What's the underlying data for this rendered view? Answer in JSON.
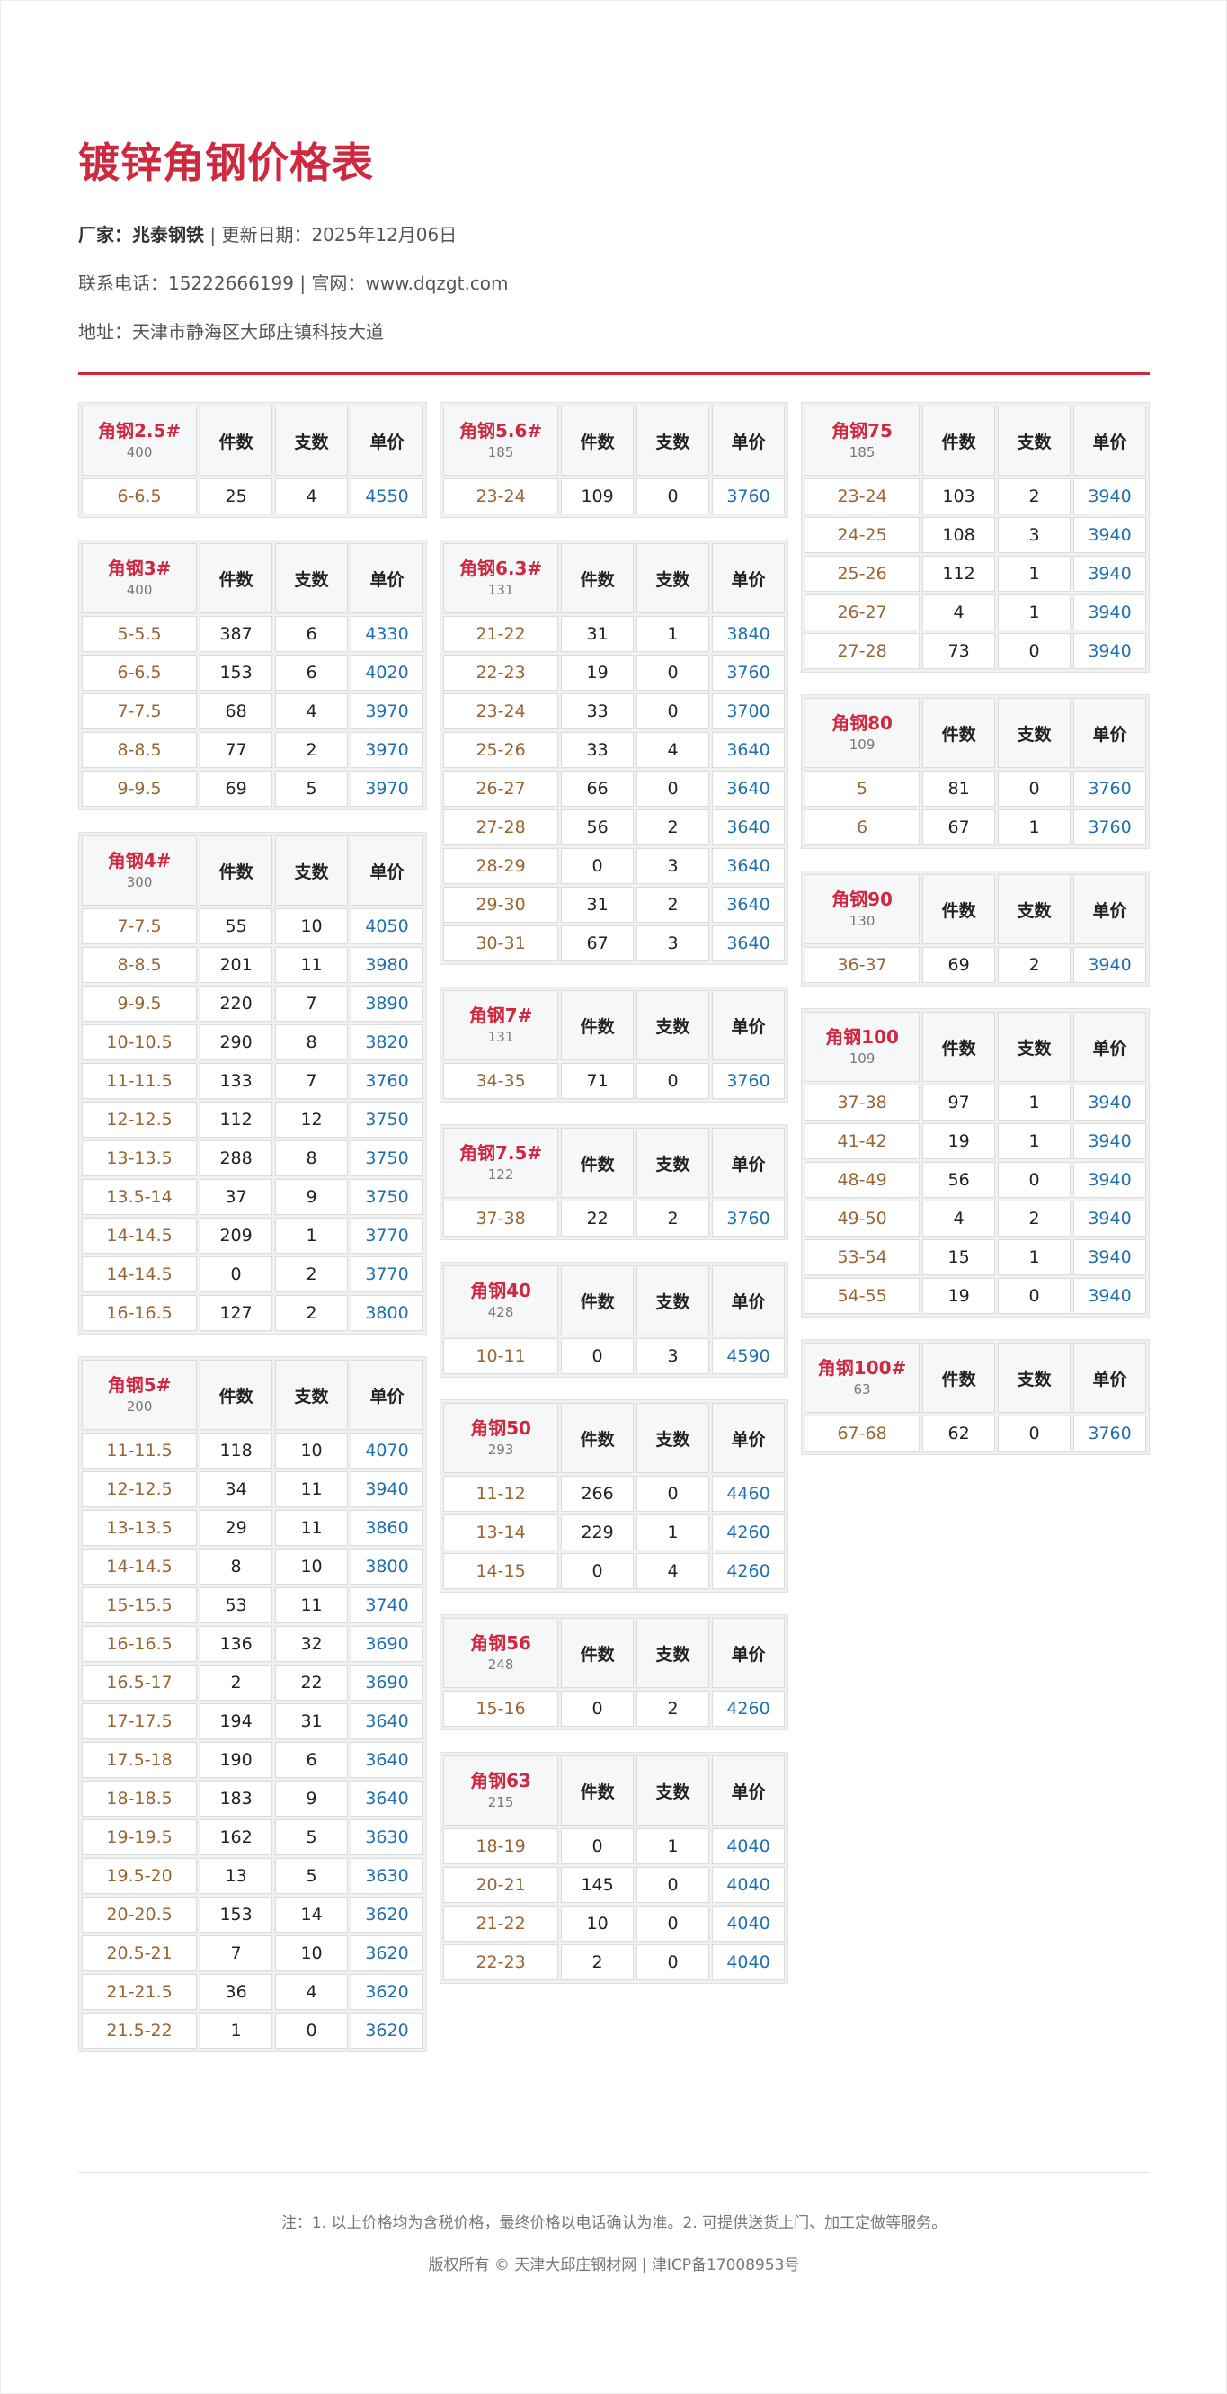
{
  "title": "镀锌角钢价格表",
  "meta": {
    "factory_label": "厂家：",
    "factory": "兆泰钢铁",
    "sep": " | ",
    "update_label": "更新日期：",
    "update": "2025年12月06日",
    "phone_label": "联系电话：",
    "phone": "15222666199",
    "site_label": "官网：",
    "site": "www.dqzgt.com",
    "address_label": "地址：",
    "address": "天津市静海区大邱庄镇科技大道"
  },
  "headers": {
    "pieces": "件数",
    "bundles": "支数",
    "price": "单价"
  },
  "columns": [
    [
      {
        "name": "角钢2.5#",
        "sub": "400",
        "rows": [
          [
            "6-6.5",
            "25",
            "4",
            "4550"
          ]
        ]
      },
      {
        "name": "角钢3#",
        "sub": "400",
        "rows": [
          [
            "5-5.5",
            "387",
            "6",
            "4330"
          ],
          [
            "6-6.5",
            "153",
            "6",
            "4020"
          ],
          [
            "7-7.5",
            "68",
            "4",
            "3970"
          ],
          [
            "8-8.5",
            "77",
            "2",
            "3970"
          ],
          [
            "9-9.5",
            "69",
            "5",
            "3970"
          ]
        ]
      },
      {
        "name": "角钢4#",
        "sub": "300",
        "rows": [
          [
            "7-7.5",
            "55",
            "10",
            "4050"
          ],
          [
            "8-8.5",
            "201",
            "11",
            "3980"
          ],
          [
            "9-9.5",
            "220",
            "7",
            "3890"
          ],
          [
            "10-10.5",
            "290",
            "8",
            "3820"
          ],
          [
            "11-11.5",
            "133",
            "7",
            "3760"
          ],
          [
            "12-12.5",
            "112",
            "12",
            "3750"
          ],
          [
            "13-13.5",
            "288",
            "8",
            "3750"
          ],
          [
            "13.5-14",
            "37",
            "9",
            "3750"
          ],
          [
            "14-14.5",
            "209",
            "1",
            "3770"
          ],
          [
            "14-14.5",
            "0",
            "2",
            "3770"
          ],
          [
            "16-16.5",
            "127",
            "2",
            "3800"
          ]
        ]
      },
      {
        "name": "角钢5#",
        "sub": "200",
        "rows": [
          [
            "11-11.5",
            "118",
            "10",
            "4070"
          ],
          [
            "12-12.5",
            "34",
            "11",
            "3940"
          ],
          [
            "13-13.5",
            "29",
            "11",
            "3860"
          ],
          [
            "14-14.5",
            "8",
            "10",
            "3800"
          ],
          [
            "15-15.5",
            "53",
            "11",
            "3740"
          ],
          [
            "16-16.5",
            "136",
            "32",
            "3690"
          ],
          [
            "16.5-17",
            "2",
            "22",
            "3690"
          ],
          [
            "17-17.5",
            "194",
            "31",
            "3640"
          ],
          [
            "17.5-18",
            "190",
            "6",
            "3640"
          ],
          [
            "18-18.5",
            "183",
            "9",
            "3640"
          ],
          [
            "19-19.5",
            "162",
            "5",
            "3630"
          ],
          [
            "19.5-20",
            "13",
            "5",
            "3630"
          ],
          [
            "20-20.5",
            "153",
            "14",
            "3620"
          ],
          [
            "20.5-21",
            "7",
            "10",
            "3620"
          ],
          [
            "21-21.5",
            "36",
            "4",
            "3620"
          ],
          [
            "21.5-22",
            "1",
            "0",
            "3620"
          ]
        ]
      }
    ],
    [
      {
        "name": "角钢5.6#",
        "sub": "185",
        "rows": [
          [
            "23-24",
            "109",
            "0",
            "3760"
          ]
        ]
      },
      {
        "name": "角钢6.3#",
        "sub": "131",
        "rows": [
          [
            "21-22",
            "31",
            "1",
            "3840"
          ],
          [
            "22-23",
            "19",
            "0",
            "3760"
          ],
          [
            "23-24",
            "33",
            "0",
            "3700"
          ],
          [
            "25-26",
            "33",
            "4",
            "3640"
          ],
          [
            "26-27",
            "66",
            "0",
            "3640"
          ],
          [
            "27-28",
            "56",
            "2",
            "3640"
          ],
          [
            "28-29",
            "0",
            "3",
            "3640"
          ],
          [
            "29-30",
            "31",
            "2",
            "3640"
          ],
          [
            "30-31",
            "67",
            "3",
            "3640"
          ]
        ]
      },
      {
        "name": "角钢7#",
        "sub": "131",
        "rows": [
          [
            "34-35",
            "71",
            "0",
            "3760"
          ]
        ]
      },
      {
        "name": "角钢7.5#",
        "sub": "122",
        "rows": [
          [
            "37-38",
            "22",
            "2",
            "3760"
          ]
        ]
      },
      {
        "name": "角钢40",
        "sub": "428",
        "rows": [
          [
            "10-11",
            "0",
            "3",
            "4590"
          ]
        ]
      },
      {
        "name": "角钢50",
        "sub": "293",
        "rows": [
          [
            "11-12",
            "266",
            "0",
            "4460"
          ],
          [
            "13-14",
            "229",
            "1",
            "4260"
          ],
          [
            "14-15",
            "0",
            "4",
            "4260"
          ]
        ]
      },
      {
        "name": "角钢56",
        "sub": "248",
        "rows": [
          [
            "15-16",
            "0",
            "2",
            "4260"
          ]
        ]
      },
      {
        "name": "角钢63",
        "sub": "215",
        "rows": [
          [
            "18-19",
            "0",
            "1",
            "4040"
          ],
          [
            "20-21",
            "145",
            "0",
            "4040"
          ],
          [
            "21-22",
            "10",
            "0",
            "4040"
          ],
          [
            "22-23",
            "2",
            "0",
            "4040"
          ]
        ]
      }
    ],
    [
      {
        "name": "角钢75",
        "sub": "185",
        "rows": [
          [
            "23-24",
            "103",
            "2",
            "3940"
          ],
          [
            "24-25",
            "108",
            "3",
            "3940"
          ],
          [
            "25-26",
            "112",
            "1",
            "3940"
          ],
          [
            "26-27",
            "4",
            "1",
            "3940"
          ],
          [
            "27-28",
            "73",
            "0",
            "3940"
          ]
        ]
      },
      {
        "name": "角钢80",
        "sub": "109",
        "rows": [
          [
            "5",
            "81",
            "0",
            "3760"
          ],
          [
            "6",
            "67",
            "1",
            "3760"
          ]
        ]
      },
      {
        "name": "角钢90",
        "sub": "130",
        "rows": [
          [
            "36-37",
            "69",
            "2",
            "3940"
          ]
        ]
      },
      {
        "name": "角钢100",
        "sub": "109",
        "rows": [
          [
            "37-38",
            "97",
            "1",
            "3940"
          ],
          [
            "41-42",
            "19",
            "1",
            "3940"
          ],
          [
            "48-49",
            "56",
            "0",
            "3940"
          ],
          [
            "49-50",
            "4",
            "2",
            "3940"
          ],
          [
            "53-54",
            "15",
            "1",
            "3940"
          ],
          [
            "54-55",
            "19",
            "0",
            "3940"
          ]
        ]
      },
      {
        "name": "角钢100#",
        "sub": "63",
        "rows": [
          [
            "67-68",
            "62",
            "0",
            "3760"
          ]
        ]
      }
    ]
  ],
  "footer": {
    "note": "注：1. 以上价格均为含税价格，最终价格以电话确认为准。2. 可提供送货上门、加工定做等服务。",
    "copyright": "版权所有 © 天津大邱庄钢材网 | 津ICP备17008953号"
  },
  "colors": {
    "accent": "#d0283e",
    "spec": "#9a6532",
    "price": "#1f6fb2"
  }
}
